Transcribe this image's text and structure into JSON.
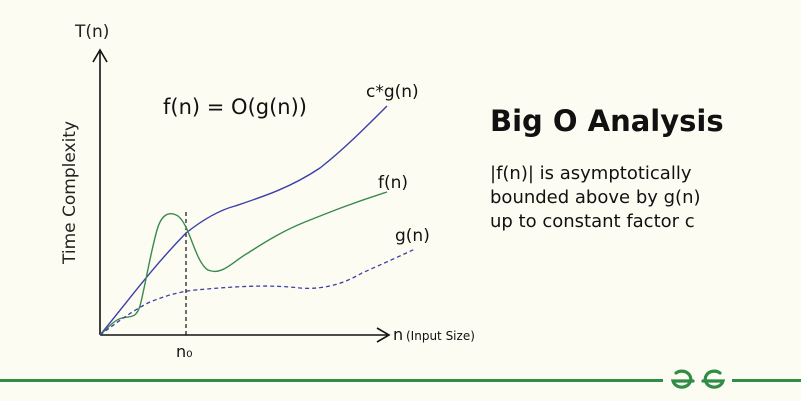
{
  "diagram": {
    "y_axis_symbol": "T(n)",
    "y_axis_label": "Time Complexity",
    "x_axis_symbol": "n",
    "x_axis_label": "(Input Size)",
    "formula": "f(n) = O(g(n))",
    "curves": {
      "upper_bound_label": "c*g(n)",
      "function_label": "f(n)",
      "bound_label": "g(n)"
    },
    "threshold_label": "n₀",
    "colors": {
      "upper_bound": "#3b3fa8",
      "function": "#3a8a4e",
      "bound": "#3b3fa8",
      "axis": "#111111"
    }
  },
  "side_panel": {
    "title": "Big O Analysis",
    "description_lines": [
      "|f(n)| is asymptotically",
      "bounded above by g(n)",
      "up to constant factor c"
    ]
  },
  "footer": {
    "logo_icon": "geeksforgeeks-logo-icon",
    "accent_color": "#2f8d46"
  }
}
